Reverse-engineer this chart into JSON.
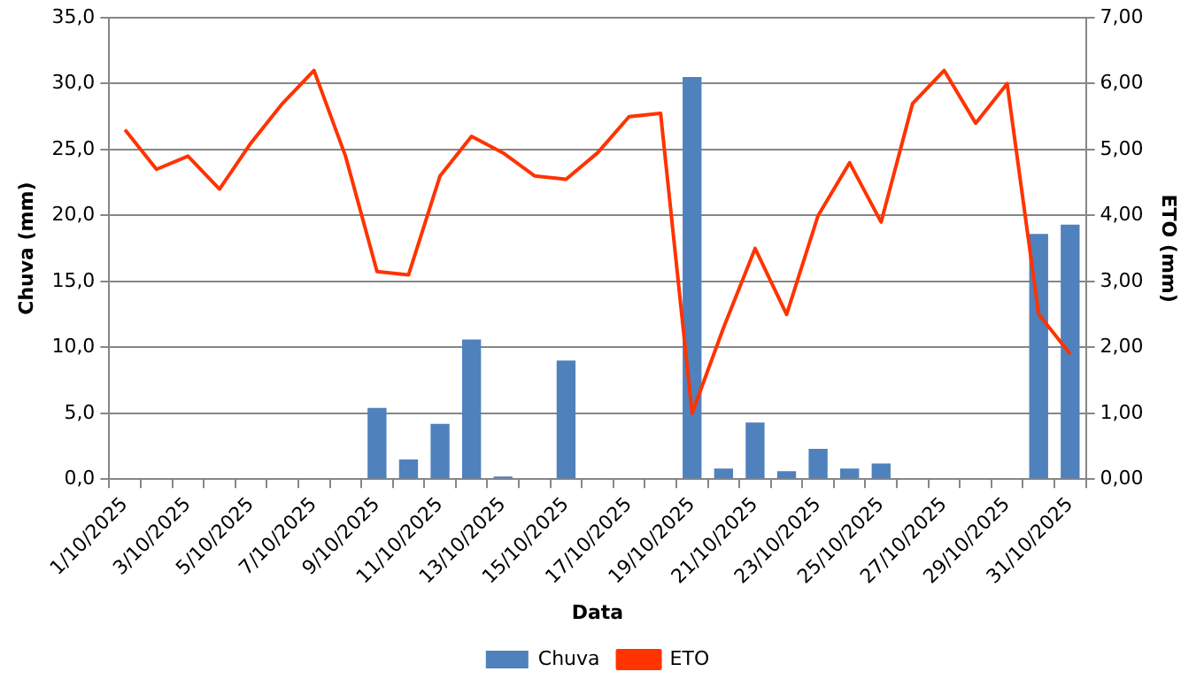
{
  "chart_data": {
    "type": "bar",
    "xlabel": "Data",
    "ylabel": "Chuva (mm)",
    "y2label": "ETO (mm)",
    "categories": [
      "1/10/2025",
      null,
      "3/10/2025",
      null,
      "5/10/2025",
      null,
      "7/10/2025",
      null,
      "9/10/2025",
      null,
      "11/10/2025",
      null,
      "13/10/2025",
      null,
      "15/10/2025",
      null,
      "17/10/2025",
      null,
      "19/10/2025",
      null,
      "21/10/2025",
      null,
      "23/10/2025",
      null,
      "25/10/2025",
      null,
      "27/10/2025",
      null,
      "29/10/2025",
      null,
      "31/10/2025"
    ],
    "series": [
      {
        "name": "Chuva",
        "color": "#4f81bd",
        "values": [
          0,
          0,
          0,
          0,
          0,
          0,
          0,
          0,
          5.4,
          1.5,
          4.2,
          10.6,
          0.2,
          0,
          9.0,
          0,
          0,
          0,
          30.5,
          0.8,
          4.3,
          0.6,
          2.3,
          0.8,
          1.2,
          0,
          0,
          0,
          0,
          18.6,
          19.3
        ]
      },
      {
        "name": "ETO",
        "type": "line",
        "axis": "y2",
        "color": "#ff3300",
        "values": [
          5.3,
          4.7,
          4.9,
          4.4,
          5.1,
          5.7,
          6.2,
          4.9,
          3.15,
          3.1,
          4.6,
          5.2,
          4.95,
          4.6,
          4.55,
          4.95,
          5.5,
          5.55,
          1.0,
          2.3,
          3.5,
          2.5,
          4.0,
          4.8,
          3.9,
          5.7,
          6.2,
          5.4,
          6.0,
          2.5,
          1.9
        ]
      }
    ],
    "ylim": [
      0,
      35
    ],
    "yticks": [
      {
        "value": 0,
        "label": "0,0"
      },
      {
        "value": 5,
        "label": "5,0"
      },
      {
        "value": 10,
        "label": "10,0"
      },
      {
        "value": 15,
        "label": "15,0"
      },
      {
        "value": 20,
        "label": "20,0"
      },
      {
        "value": 25,
        "label": "25,0"
      },
      {
        "value": 30,
        "label": "30,0"
      },
      {
        "value": 35,
        "label": "35,0"
      }
    ],
    "y2lim": [
      0,
      7
    ],
    "y2ticks": [
      {
        "value": 0,
        "label": "0,00"
      },
      {
        "value": 1,
        "label": "1,00"
      },
      {
        "value": 2,
        "label": "2,00"
      },
      {
        "value": 3,
        "label": "3,00"
      },
      {
        "value": 4,
        "label": "4,00"
      },
      {
        "value": 5,
        "label": "5,00"
      },
      {
        "value": 6,
        "label": "6,00"
      },
      {
        "value": 7,
        "label": "7,00"
      }
    ],
    "grid": "y",
    "legend": "bottom",
    "marker": "none",
    "line_style": "solid"
  }
}
